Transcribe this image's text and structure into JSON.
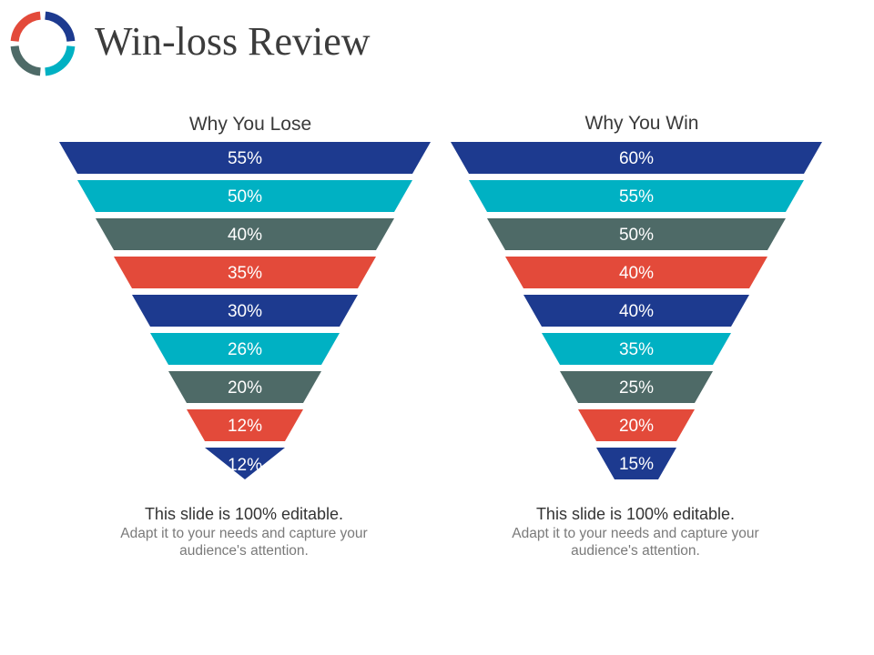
{
  "title": "Win-loss Review",
  "logo": {
    "icon": "ring-logo-icon",
    "colors": [
      "#1d3a8f",
      "#00b1c3",
      "#4e6a67",
      "#e34a3a"
    ]
  },
  "palette": [
    "#1d3a8f",
    "#00b1c3",
    "#4e6a67",
    "#e34a3a"
  ],
  "chart_data": [
    {
      "type": "funnel",
      "title": "Why You Lose",
      "values": [
        55,
        50,
        40,
        35,
        30,
        26,
        20,
        12,
        12
      ],
      "labels": [
        "55%",
        "50%",
        "40%",
        "35%",
        "30%",
        "26%",
        "20%",
        "12%",
        "12%"
      ],
      "last_segment_shape": "triangle"
    },
    {
      "type": "funnel",
      "title": "Why You Win",
      "values": [
        60,
        55,
        50,
        40,
        40,
        35,
        25,
        20,
        15
      ],
      "labels": [
        "60%",
        "55%",
        "50%",
        "40%",
        "40%",
        "35%",
        "25%",
        "20%",
        "15%"
      ],
      "last_segment_shape": "trapezoid"
    }
  ],
  "captions": [
    {
      "heading": "This slide is 100% editable.",
      "body": "Adapt it to your needs and capture your audience's attention."
    },
    {
      "heading": "This slide is 100% editable.",
      "body": "Adapt it to your needs and capture your audience's attention."
    }
  ]
}
